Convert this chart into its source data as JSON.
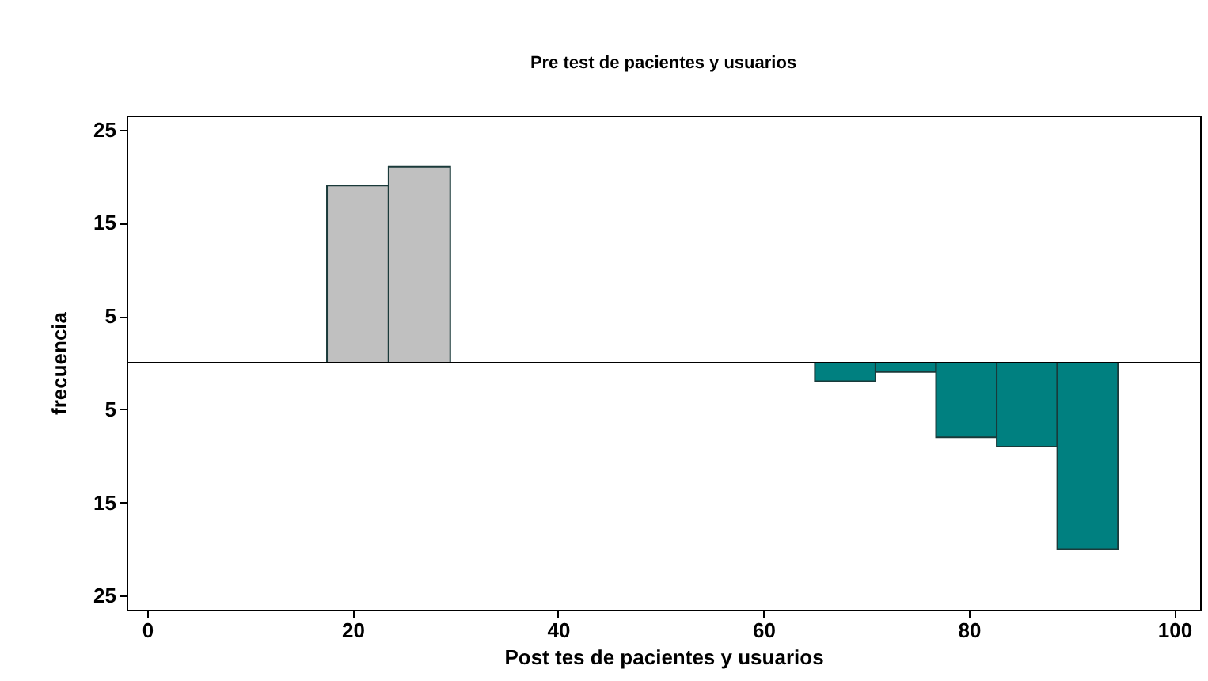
{
  "chart_data": {
    "type": "histogram",
    "title": "Pre test de pacientes y usuarios",
    "xlabel": "Post tes de pacientes y usuarios",
    "ylabel": "frecuencia",
    "series": [
      {
        "color": "#c0c0c0",
        "values": [
          19,
          21,
          null,
          null,
          null,
          null,
          null,
          null
        ]
      },
      {
        "color": "#008080",
        "values": [
          null,
          null,
          null,
          -2,
          -1,
          -8,
          -9,
          -20
        ]
      }
    ],
    "bins": [
      17.5,
      23.5,
      29.5,
      65,
      70.9,
      76.8,
      82.7,
      88.6,
      94.5
    ],
    "xlim": [
      -2,
      102.5
    ],
    "xticks": [
      0,
      20,
      40,
      60,
      80,
      100
    ],
    "ylim": [
      -26.5,
      26.5
    ],
    "yticks": [
      {
        "value": -25,
        "label": "25"
      },
      {
        "value": -15,
        "label": "15"
      },
      {
        "value": -5,
        "label": "5"
      },
      {
        "value": 5,
        "label": "5"
      },
      {
        "value": 15,
        "label": "15"
      },
      {
        "value": 25,
        "label": "25"
      }
    ],
    "ref_lines": [
      {
        "axis": "y",
        "value": 0,
        "color": "#000000"
      }
    ],
    "grid": false
  }
}
